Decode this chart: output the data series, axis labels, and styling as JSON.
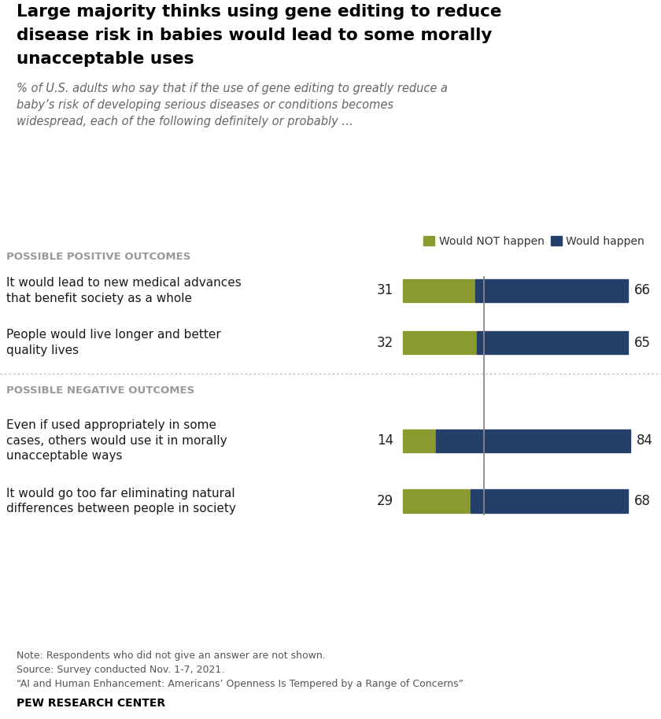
{
  "title_line1": "Large majority thinks using gene editing to reduce",
  "title_line2": "disease risk in babies would lead to some morally",
  "title_line3": "unacceptable uses",
  "subtitle": "% of U.S. adults who say that if the use of gene editing to greatly reduce a\nbaby’s risk of developing serious diseases or conditions becomes\nwidespread, each of the following definitely or probably …",
  "legend_labels": [
    "Would NOT happen",
    "Would happen"
  ],
  "legend_colors": [
    "#8a9a2e",
    "#243f6a"
  ],
  "section_labels": [
    "POSSIBLE POSITIVE OUTCOMES",
    "POSSIBLE NEGATIVE OUTCOMES"
  ],
  "categories": [
    "It would lead to new medical advances\nthat benefit society as a whole",
    "People would live longer and better\nquality lives",
    "Even if used appropriately in some\ncases, others would use it in morally\nunacceptable ways",
    "It would go too far eliminating natural\ndifferences between people in society"
  ],
  "not_happen_values": [
    31,
    32,
    14,
    29
  ],
  "happen_values": [
    66,
    65,
    84,
    68
  ],
  "bar_color_not_happen": "#8a9a2e",
  "bar_color_happen": "#243f6a",
  "note_text": "Note: Respondents who did not give an answer are not shown.\nSource: Survey conducted Nov. 1-7, 2021.\n“AI and Human Enhancement: Americans’ Openness Is Tempered by a Range of Concerns”",
  "footer_bold": "PEW RESEARCH CENTER",
  "background_color": "#ffffff",
  "section_color": "#999999",
  "title_color": "#000000",
  "subtitle_color": "#666666"
}
